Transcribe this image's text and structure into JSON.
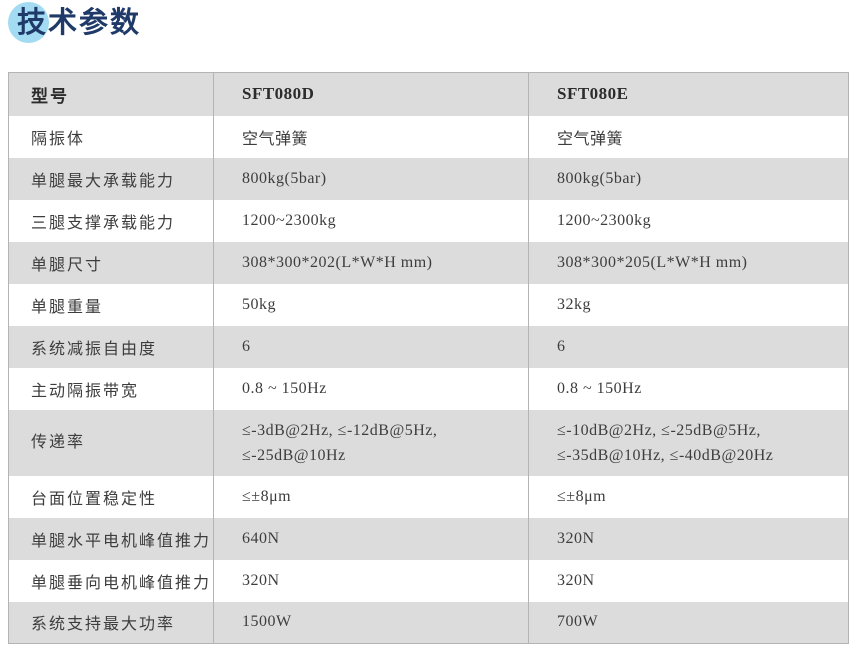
{
  "page": {
    "title": "技术参数"
  },
  "colors": {
    "title_navy": "#1f3a68",
    "title_circle_blue": "#a2dbf2",
    "row_gray": "#dcdcdc",
    "border_gray": "#b4b4b4",
    "text_dark": "#3d3d3d"
  },
  "table": {
    "headers": [
      "型号",
      "SFT080D",
      "SFT080E"
    ],
    "rows": [
      {
        "label": "隔振体",
        "sft080d": "空气弹簧",
        "sft080e": "空气弹簧"
      },
      {
        "label": "单腿最大承载能力",
        "sft080d": "800kg(5bar)",
        "sft080e": "800kg(5bar)"
      },
      {
        "label": "三腿支撑承载能力",
        "sft080d": "1200~2300kg",
        "sft080e": "1200~2300kg"
      },
      {
        "label": "单腿尺寸",
        "sft080d": "308*300*202(L*W*H mm)",
        "sft080e": "308*300*205(L*W*H mm)"
      },
      {
        "label": "单腿重量",
        "sft080d": "50kg",
        "sft080e": "32kg"
      },
      {
        "label": "系统减振自由度",
        "sft080d": "6",
        "sft080e": "6"
      },
      {
        "label": "主动隔振带宽",
        "sft080d": "0.8 ~ 150Hz",
        "sft080e": "0.8 ~ 150Hz"
      },
      {
        "label": "传递率",
        "sft080d": "≤-3dB@2Hz, ≤-12dB@5Hz,\n≤-25dB@10Hz",
        "sft080e": "≤-10dB@2Hz, ≤-25dB@5Hz,\n≤-35dB@10Hz, ≤-40dB@20Hz"
      },
      {
        "label": "台面位置稳定性",
        "sft080d": "≤±8μm",
        "sft080e": "≤±8μm"
      },
      {
        "label": "单腿水平电机峰值推力",
        "sft080d": "640N",
        "sft080e": "320N"
      },
      {
        "label": "单腿垂向电机峰值推力",
        "sft080d": "320N",
        "sft080e": "320N"
      },
      {
        "label": "系统支持最大功率",
        "sft080d": "1500W",
        "sft080e": "700W"
      }
    ]
  }
}
